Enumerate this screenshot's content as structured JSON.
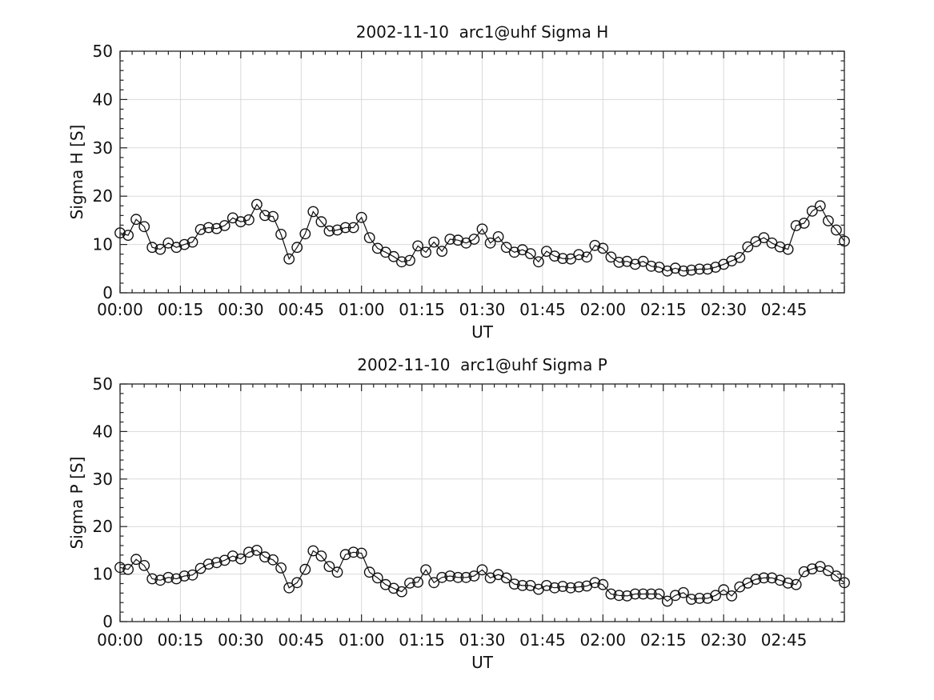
{
  "figure": {
    "background": "#ffffff",
    "text_color": "#111111",
    "grid_color": "#d9d9d9",
    "axis_color": "#222222",
    "series_color": "#111111"
  },
  "chart_data": [
    {
      "id": "sigma-h",
      "type": "line",
      "title": "2002-11-10  arc1@uhf Sigma H",
      "xlabel": "UT",
      "ylabel": "Sigma H [S]",
      "legend": "none",
      "grid": true,
      "marker": "open-circle",
      "xlim": [
        0,
        180
      ],
      "ylim": [
        0,
        50
      ],
      "x_unit": "minutes after 00:00 UT",
      "x_start_min": 0,
      "x_step_min": 2,
      "x_major_tick_min": 15,
      "x_minor_tick_min": 3,
      "y_major_tick": 10,
      "y_minor_tick": 2,
      "x_tick_labels": [
        "00:00",
        "00:15",
        "00:30",
        "00:45",
        "01:00",
        "01:15",
        "01:30",
        "01:45",
        "02:00",
        "02:15",
        "02:30",
        "02:45"
      ],
      "y_tick_labels": [
        "0",
        "10",
        "20",
        "30",
        "40",
        "50"
      ],
      "values": [
        12.4,
        11.9,
        15.2,
        13.7,
        9.4,
        9.0,
        10.3,
        9.4,
        10.0,
        10.5,
        13.1,
        13.5,
        13.3,
        13.9,
        15.5,
        14.7,
        15.1,
        18.3,
        16.0,
        15.8,
        12.1,
        7.0,
        9.4,
        12.2,
        16.8,
        14.7,
        12.8,
        13.0,
        13.5,
        13.5,
        15.6,
        11.4,
        9.2,
        8.4,
        7.5,
        6.4,
        6.7,
        9.7,
        8.4,
        10.5,
        8.6,
        11.1,
        10.9,
        10.3,
        11.1,
        13.2,
        10.3,
        11.6,
        9.4,
        8.4,
        8.9,
        8.1,
        6.4,
        8.6,
        7.6,
        7.1,
        7.0,
        7.9,
        7.4,
        9.8,
        9.2,
        7.4,
        6.3,
        6.5,
        5.9,
        6.5,
        5.5,
        5.3,
        4.5,
        5.1,
        4.5,
        4.7,
        4.9,
        4.9,
        5.3,
        5.9,
        6.6,
        7.3,
        9.5,
        10.6,
        11.4,
        10.3,
        9.5,
        9.0,
        13.9,
        14.4,
        16.9,
        18.0,
        14.9,
        13.0,
        10.7
      ]
    },
    {
      "id": "sigma-p",
      "type": "line",
      "title": "2002-11-10  arc1@uhf Sigma P",
      "xlabel": "UT",
      "ylabel": "Sigma P [S]",
      "legend": "none",
      "grid": true,
      "marker": "open-circle",
      "xlim": [
        0,
        180
      ],
      "ylim": [
        0,
        50
      ],
      "x_unit": "minutes after 00:00 UT",
      "x_start_min": 0,
      "x_step_min": 2,
      "x_major_tick_min": 15,
      "x_minor_tick_min": 3,
      "y_major_tick": 10,
      "y_minor_tick": 2,
      "x_tick_labels": [
        "00:00",
        "00:15",
        "00:30",
        "00:45",
        "01:00",
        "01:15",
        "01:30",
        "01:45",
        "02:00",
        "02:15",
        "02:30",
        "02:45"
      ],
      "y_tick_labels": [
        "0",
        "10",
        "20",
        "30",
        "40",
        "50"
      ],
      "values": [
        11.4,
        11.0,
        13.1,
        11.8,
        9.0,
        8.7,
        9.3,
        9.0,
        9.6,
        9.8,
        11.2,
        12.1,
        12.4,
        12.9,
        13.8,
        13.2,
        14.6,
        15.0,
        13.6,
        13.0,
        11.3,
        7.1,
        8.2,
        11.0,
        14.9,
        13.8,
        11.6,
        10.4,
        14.1,
        14.6,
        14.4,
        10.4,
        9.2,
        7.8,
        7.0,
        6.3,
        8.1,
        8.3,
        10.9,
        8.2,
        9.3,
        9.6,
        9.3,
        9.3,
        9.6,
        10.9,
        9.2,
        9.9,
        9.2,
        7.9,
        7.6,
        7.6,
        6.8,
        7.6,
        7.1,
        7.4,
        7.1,
        7.3,
        7.5,
        8.2,
        7.8,
        5.8,
        5.5,
        5.4,
        5.8,
        5.8,
        5.8,
        5.8,
        4.3,
        5.5,
        6.1,
        4.7,
        4.9,
        4.9,
        5.5,
        6.7,
        5.4,
        7.3,
        8.1,
        8.9,
        9.2,
        9.2,
        8.7,
        8.1,
        7.8,
        10.5,
        11.1,
        11.6,
        10.7,
        9.6,
        8.2
      ]
    }
  ]
}
